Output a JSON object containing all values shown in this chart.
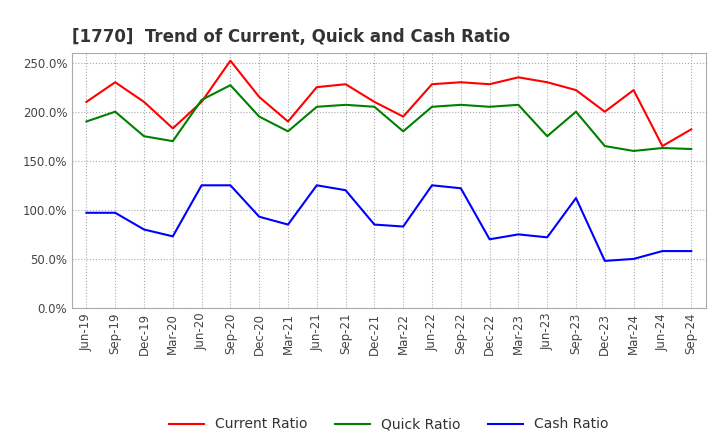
{
  "title": "[1770]  Trend of Current, Quick and Cash Ratio",
  "x_labels": [
    "Jun-19",
    "Sep-19",
    "Dec-19",
    "Mar-20",
    "Jun-20",
    "Sep-20",
    "Dec-20",
    "Mar-21",
    "Jun-21",
    "Sep-21",
    "Dec-21",
    "Mar-22",
    "Jun-22",
    "Sep-22",
    "Dec-22",
    "Mar-23",
    "Jun-23",
    "Sep-23",
    "Dec-23",
    "Mar-24",
    "Jun-24",
    "Sep-24"
  ],
  "current_ratio": [
    210,
    230,
    210,
    183,
    210,
    252,
    215,
    190,
    225,
    228,
    210,
    195,
    228,
    230,
    228,
    235,
    230,
    222,
    200,
    222,
    165,
    182
  ],
  "quick_ratio": [
    190,
    200,
    175,
    170,
    212,
    227,
    195,
    180,
    205,
    207,
    205,
    180,
    205,
    207,
    205,
    207,
    175,
    200,
    165,
    160,
    163,
    162
  ],
  "cash_ratio": [
    97,
    97,
    80,
    73,
    125,
    125,
    93,
    85,
    125,
    120,
    85,
    83,
    125,
    122,
    70,
    75,
    72,
    112,
    48,
    50,
    58,
    58
  ],
  "ylim": [
    0,
    260
  ],
  "yticks": [
    0,
    50,
    100,
    150,
    200,
    250
  ],
  "current_color": "#ff0000",
  "quick_color": "#008000",
  "cash_color": "#0000ff",
  "bg_color": "#ffffff",
  "grid_color": "#aaaaaa",
  "title_fontsize": 12,
  "tick_fontsize": 8.5,
  "legend_fontsize": 10
}
